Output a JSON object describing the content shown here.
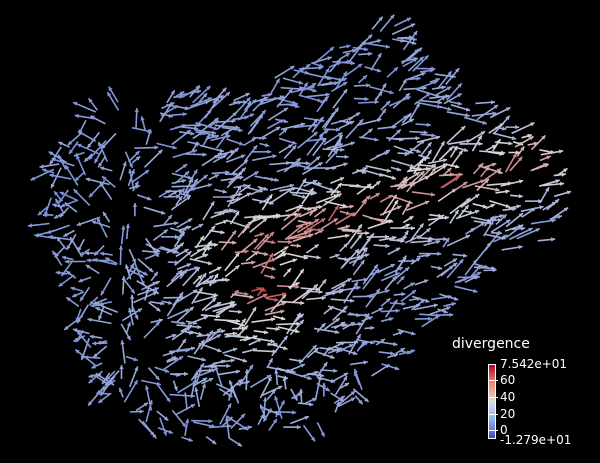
{
  "legend": {
    "title": "divergence",
    "max_label": "7.542e+01",
    "min_label": "-1.279e+01",
    "ticks": [
      "60",
      "40",
      "20",
      "0"
    ],
    "range": [
      -12.79,
      75.42
    ],
    "colors": {
      "low": "#3b4cc0",
      "mid": "#dddddd",
      "high": "#b40426"
    }
  },
  "scene": {
    "background": "#000000",
    "glyph": "arrow-icon",
    "arrow_count_estimate": 1100
  }
}
